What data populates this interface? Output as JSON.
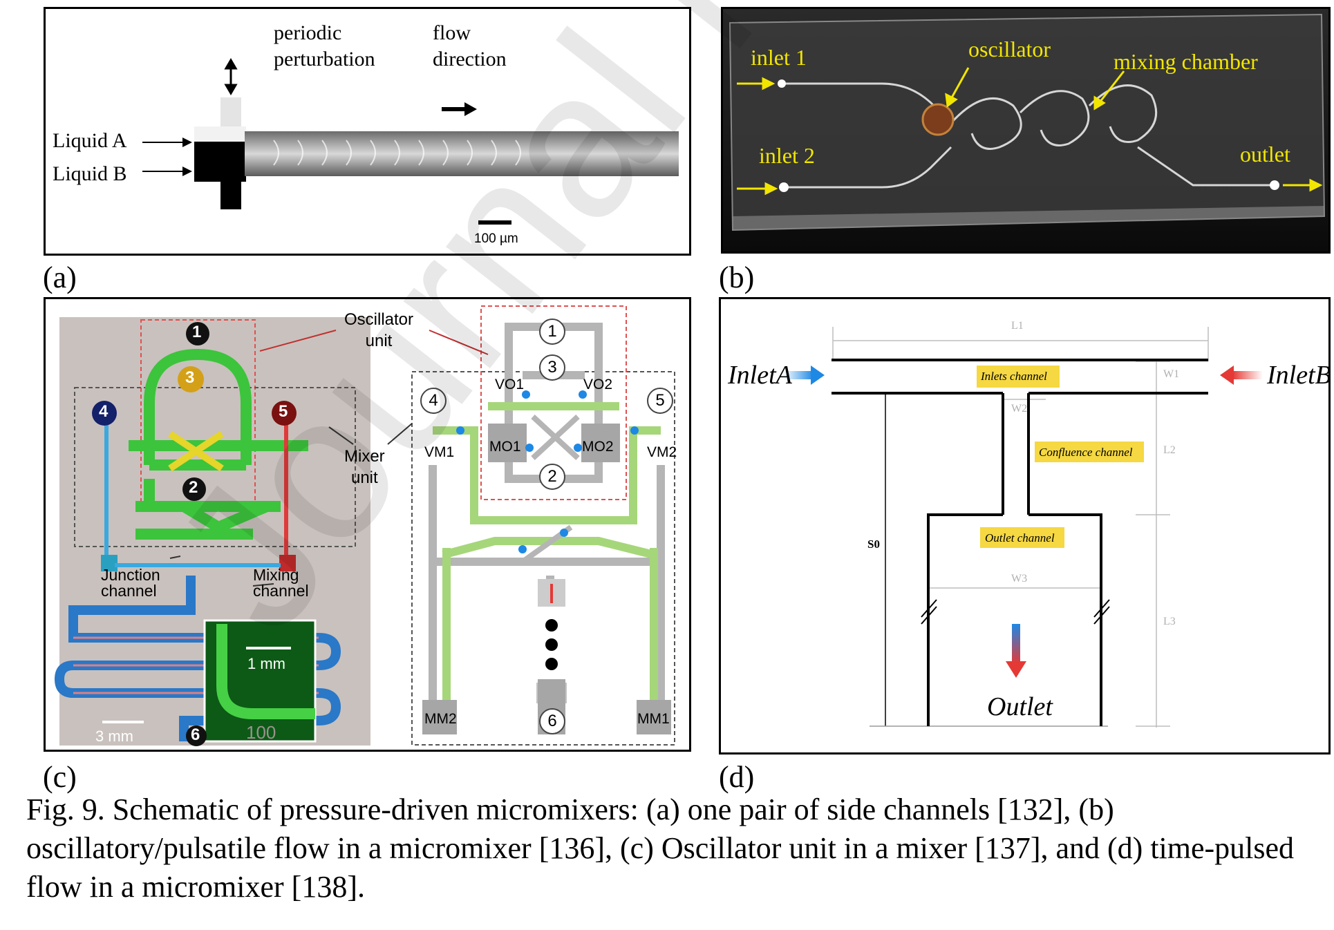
{
  "panel_a": {
    "label": "(a)",
    "perturbation": "periodic\nperturbation",
    "flow": "flow\ndirection",
    "liquid_a": "Liquid A",
    "liquid_b": "Liquid B",
    "scale": "100 µm"
  },
  "panel_b": {
    "label": "(b)",
    "inlet1": "inlet 1",
    "inlet2": "inlet 2",
    "oscillator": "oscillator",
    "mixing_chamber": "mixing chamber",
    "outlet": "outlet"
  },
  "panel_c": {
    "label": "(c)",
    "oscillator_unit": "Oscillator\nunit",
    "mixer_unit": "Mixer\nunit",
    "junction": "Junction\nchannel",
    "mixing": "Mixing\nchannel",
    "scale_3mm": "3 mm",
    "scale_1mm": "1 mm",
    "num_100": "100",
    "ports": [
      "1",
      "2",
      "3",
      "4",
      "5",
      "6"
    ],
    "valves": {
      "vo1": "VO1",
      "vo2": "VO2",
      "vm1": "VM1",
      "vm2": "VM2",
      "mo1": "MO1",
      "mo2": "MO2",
      "mm1": "MM1",
      "mm2": "MM2"
    }
  },
  "panel_d": {
    "label": "(d)",
    "inlet_a": "InletA",
    "inlet_b": "InletB",
    "inlets_channel": "Inlets channel",
    "confluence_channel": "Confluence channel",
    "outlet_channel": "Outlet channel",
    "outlet": "Outlet",
    "s0": "S0",
    "l1": "L1",
    "l2": "L2",
    "l3": "L3",
    "w1": "W1",
    "w2": "W2",
    "w3": "W3"
  },
  "watermark": "Journal Pre-proof",
  "caption": "Fig. 9. Schematic of pressure-driven micromixers: (a) one pair of side channels [132], (b) oscillatory/pulsatile flow in a micromixer [136], (c) Oscillator unit in a mixer [137], and (d) time-pulsed flow in a micromixer [138].",
  "colors": {
    "highlight": "#f5d842",
    "green": "#3cc43c",
    "lightgreen": "#a6d67a",
    "blue": "#1e88e5",
    "red": "#e53935",
    "annotation_yellow": "#f2e600"
  }
}
